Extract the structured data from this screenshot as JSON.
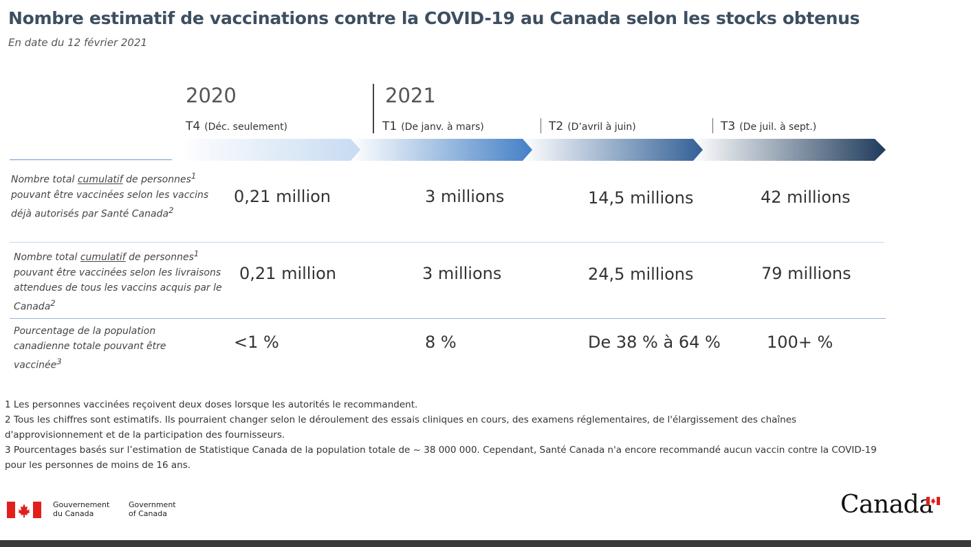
{
  "title": "Nombre estimatif de vaccinations contre la COVID-19 au Canada selon les stocks obtenus",
  "subtitle": "En date du 12 février 2021",
  "years": {
    "y2020": "2020",
    "y2021": "2021"
  },
  "quarters": [
    {
      "code": "T4",
      "range": "(Déc. seulement)"
    },
    {
      "code": "T1",
      "range": "(De janv. à mars)"
    },
    {
      "code": "T2",
      "range": "(D’avril à juin)"
    },
    {
      "code": "T3",
      "range": "(De juil. à sept.)"
    }
  ],
  "colors": {
    "title": "#3d4f61",
    "arrow_light": "#e4eef9",
    "arrow_dark": "#1f3b5c",
    "rule": "#6a9bd1"
  },
  "rows": [
    {
      "label_a": "Nombre total ",
      "label_u": "cumulatif",
      "label_b": " de personnes",
      "label_sup1": "1",
      "label_c": " pouvant être vaccinées selon les vaccins déjà autorisés par Santé Canada",
      "label_sup2": "2",
      "values": [
        "0,21 million",
        "3 millions",
        "14,5 millions",
        "42 millions"
      ]
    },
    {
      "label_a": "Nombre total ",
      "label_u": "cumulatif",
      "label_b": " de personnes",
      "label_sup1": "1",
      "label_c": " pouvant être vaccinées selon les livraisons attendues de tous les vaccins acquis par le Canada",
      "label_sup2": "2",
      "values": [
        "0,21 million",
        "3 millions",
        "24,5 millions",
        "79 millions"
      ]
    },
    {
      "label_c": "Pourcentage de la population canadienne totale pouvant être vaccinée",
      "label_sup2": "3",
      "values": [
        "<1 %",
        "8 %",
        "De 38 % à 64 %",
        "100+ %"
      ]
    }
  ],
  "footnotes": [
    "1 Les personnes vaccinées reçoivent deux doses lorsque les autorités le recommandent.",
    "2 Tous les chiffres sont estimatifs. Ils pourraient changer selon le déroulement des essais cliniques en cours, des examens réglementaires, de l'élargissement des chaînes d'approvisionnement et de la participation des fournisseurs.",
    "3 Pourcentages basés sur l’estimation de Statistique Canada de la population totale de ~ 38 000 000. Cependant, Santé Canada n'a encore recommandé aucun vaccin contre la COVID-19 pour les personnes de moins de 16 ans."
  ],
  "gov": {
    "fr_line1": "Gouvernement",
    "fr_line2": "du Canada",
    "en_line1": "Government",
    "en_line2": "of Canada",
    "wordmark": "Canada"
  }
}
